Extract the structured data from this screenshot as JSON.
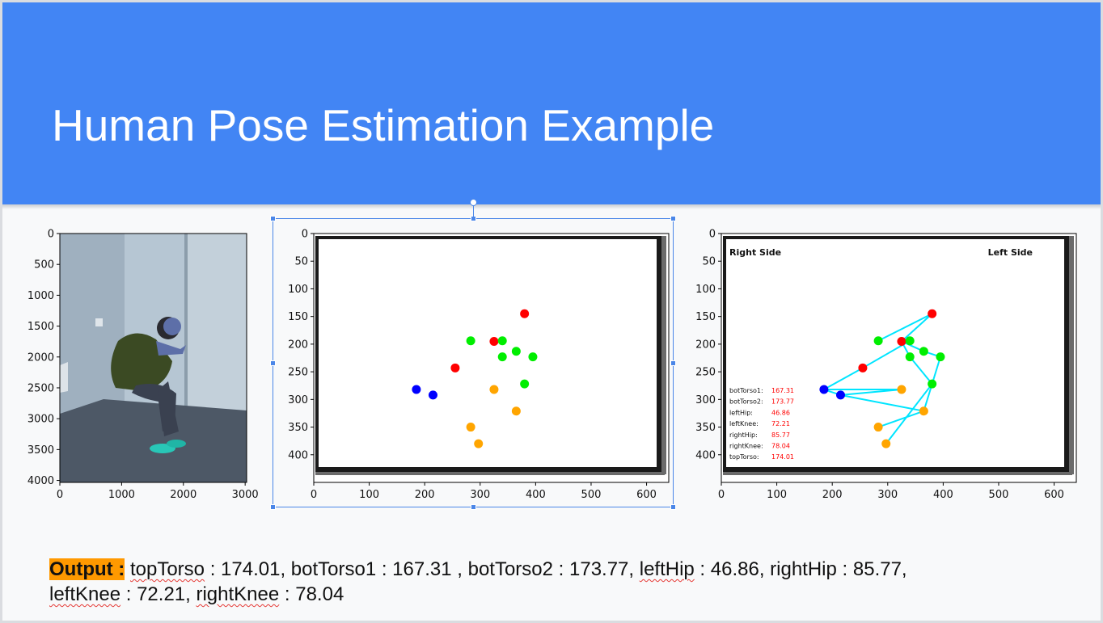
{
  "slide": {
    "title": "Human Pose Estimation Example",
    "colors": {
      "banner": "#4285f4",
      "output_highlight": "#ff9900",
      "selection": "#4a86e8"
    }
  },
  "plots": {
    "photo": {
      "y_ticks": [
        "0",
        "500",
        "1000",
        "1500",
        "2000",
        "2500",
        "3000",
        "3500",
        "4000"
      ],
      "x_ticks": [
        "0",
        "1000",
        "2000",
        "3000"
      ],
      "xlim": [
        0,
        3024
      ],
      "ylim": [
        4032,
        0
      ]
    },
    "keypoints": {
      "y_ticks": [
        "0",
        "50",
        "100",
        "150",
        "200",
        "250",
        "300",
        "350",
        "400"
      ],
      "x_ticks": [
        "0",
        "100",
        "200",
        "300",
        "400",
        "500",
        "600"
      ],
      "xlim": [
        0,
        640
      ],
      "ylim": [
        450,
        0
      ]
    },
    "skeleton": {
      "y_ticks": [
        "0",
        "50",
        "100",
        "150",
        "200",
        "250",
        "300",
        "350",
        "400"
      ],
      "x_ticks": [
        "0",
        "100",
        "200",
        "300",
        "400",
        "500",
        "600"
      ],
      "xlim": [
        0,
        640
      ],
      "ylim": [
        450,
        0
      ],
      "right_label": "Right Side",
      "left_label": "Left Side",
      "angle_labels": [
        "botTorso1:",
        "botTorso2:",
        "leftHip:",
        "leftKnee:",
        "rightHip:",
        "rightKnee:",
        "topTorso:"
      ],
      "angle_values": [
        "167.31",
        "173.77",
        "46.86",
        "72.21",
        "85.77",
        "78.04",
        "174.01"
      ]
    }
  },
  "chart_data": {
    "type": "scatter",
    "xlim": [
      0,
      640
    ],
    "ylim": [
      450,
      0
    ],
    "series": [
      {
        "color": "#ff0000",
        "points": [
          [
            380,
            145
          ],
          [
            325,
            195
          ],
          [
            255,
            243
          ]
        ]
      },
      {
        "color": "#00ee00",
        "points": [
          [
            283,
            194
          ],
          [
            340,
            194
          ],
          [
            365,
            213
          ],
          [
            340,
            223
          ],
          [
            395,
            223
          ],
          [
            380,
            272
          ]
        ]
      },
      {
        "color": "#0000ff",
        "points": [
          [
            185,
            282
          ],
          [
            215,
            292
          ]
        ]
      },
      {
        "color": "#ffa500",
        "points": [
          [
            325,
            282
          ],
          [
            365,
            321
          ],
          [
            283,
            350
          ],
          [
            297,
            380
          ]
        ]
      }
    ],
    "skeleton_edges": [
      [
        [
          380,
          145
        ],
        [
          325,
          195
        ]
      ],
      [
        [
          380,
          145
        ],
        [
          283,
          194
        ]
      ],
      [
        [
          340,
          194
        ],
        [
          325,
          195
        ]
      ],
      [
        [
          340,
          194
        ],
        [
          255,
          243
        ]
      ],
      [
        [
          255,
          243
        ],
        [
          185,
          282
        ]
      ],
      [
        [
          185,
          282
        ],
        [
          215,
          292
        ]
      ],
      [
        [
          185,
          282
        ],
        [
          325,
          282
        ]
      ],
      [
        [
          325,
          282
        ],
        [
          215,
          292
        ]
      ],
      [
        [
          325,
          195
        ],
        [
          365,
          213
        ]
      ],
      [
        [
          365,
          213
        ],
        [
          395,
          223
        ]
      ],
      [
        [
          395,
          223
        ],
        [
          380,
          272
        ]
      ],
      [
        [
          325,
          195
        ],
        [
          340,
          223
        ]
      ],
      [
        [
          340,
          223
        ],
        [
          380,
          272
        ]
      ],
      [
        [
          380,
          272
        ],
        [
          365,
          321
        ]
      ],
      [
        [
          365,
          321
        ],
        [
          215,
          292
        ]
      ],
      [
        [
          365,
          321
        ],
        [
          283,
          350
        ]
      ],
      [
        [
          380,
          272
        ],
        [
          297,
          380
        ]
      ]
    ],
    "skeleton_color": "#00e5ff"
  },
  "output": {
    "label": "Output :",
    "line1_a": " ",
    "topTorso": "topTorso",
    "line1_b": " : 174.01, botTorso1 : 167.31 , botTorso2 : 173.77, ",
    "leftHip": "leftHip",
    "line1_c": " : 46.86, rightHip : 85.77,",
    "leftKnee": "leftKnee",
    "line2_a": " : 72.21, ",
    "rightKnee": "rightKnee",
    "line2_b": " : 78.04"
  }
}
